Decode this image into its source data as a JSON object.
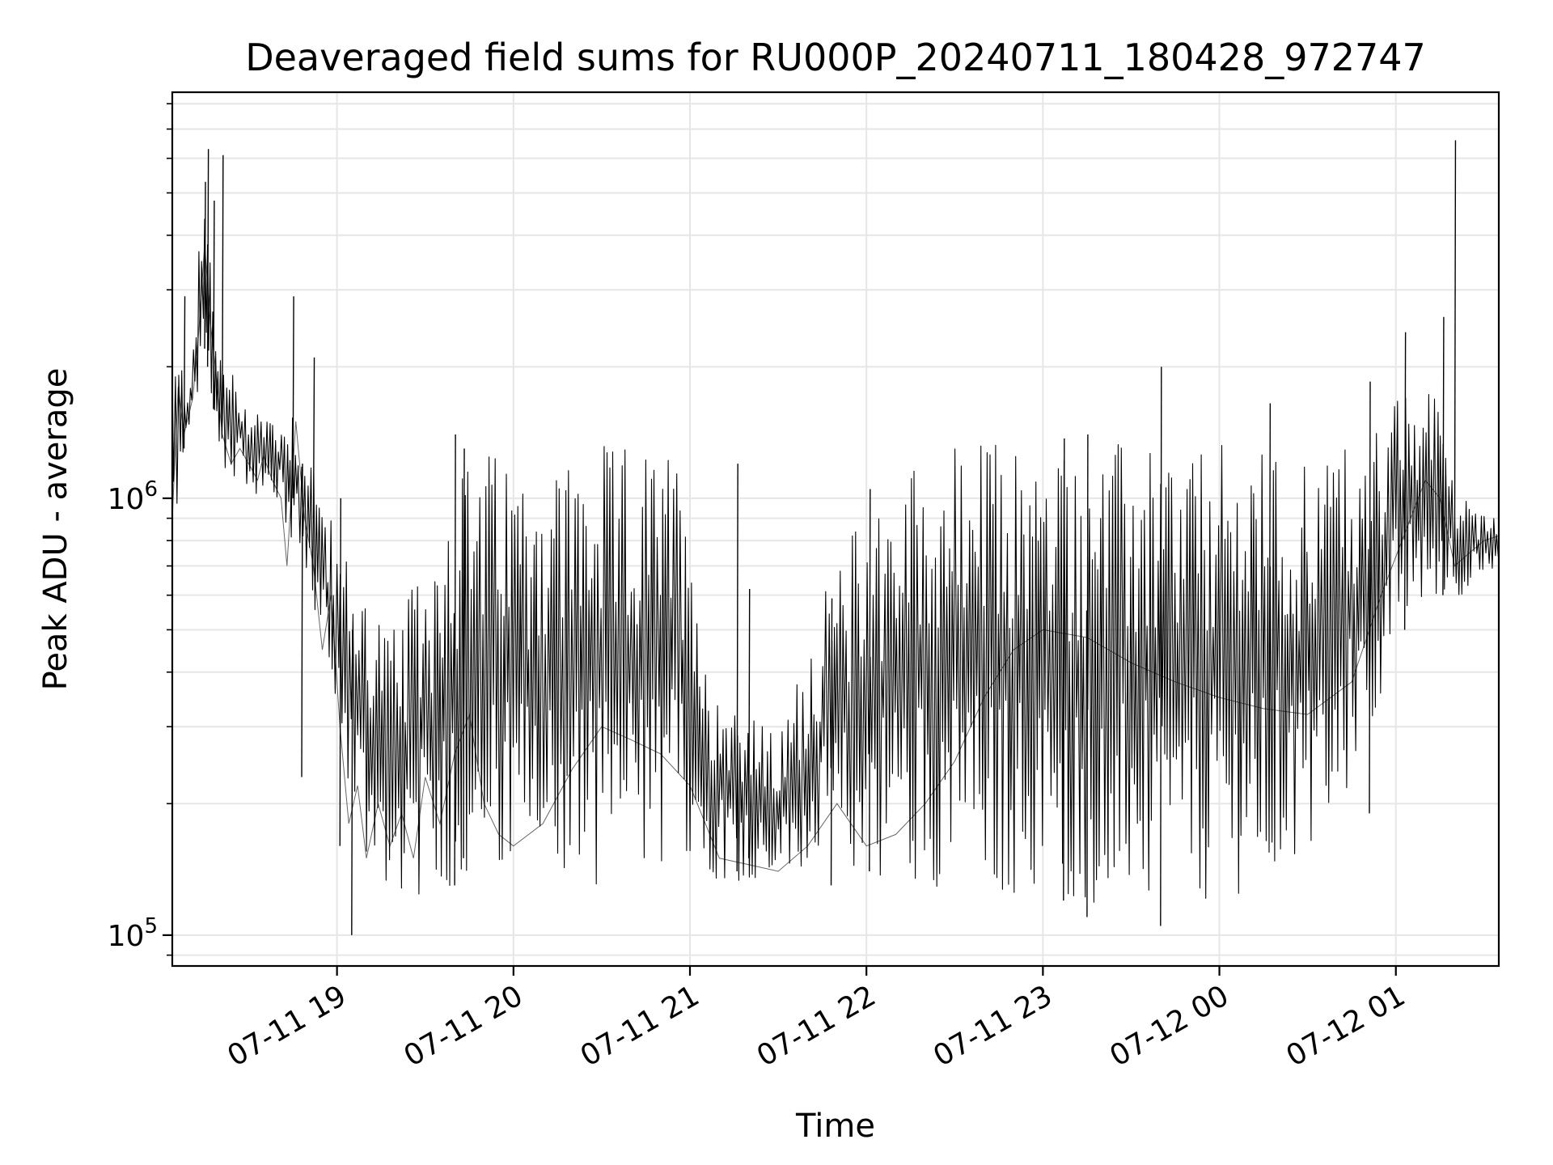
{
  "chart_data": {
    "type": "line",
    "title": "Deaveraged field sums for RU000P_20240711_180428_972747",
    "xlabel": "Time",
    "ylabel": "Peak ADU - average",
    "x_scale": "time",
    "y_scale": "log",
    "xlim": [
      "2024-07-11 18:04",
      "2024-07-12 01:35"
    ],
    "ylim": [
      85000,
      8500000
    ],
    "grid": true,
    "legend": "none",
    "line_color": "#000000",
    "x_ticks": [
      {
        "t": "2024-07-11 19:00",
        "label": "07-11 19"
      },
      {
        "t": "2024-07-11 20:00",
        "label": "07-11 20"
      },
      {
        "t": "2024-07-11 21:00",
        "label": "07-11 21"
      },
      {
        "t": "2024-07-11 22:00",
        "label": "07-11 22"
      },
      {
        "t": "2024-07-11 23:00",
        "label": "07-11 23"
      },
      {
        "t": "2024-07-12 00:00",
        "label": "07-12 00"
      },
      {
        "t": "2024-07-12 01:00",
        "label": "07-12 01"
      }
    ],
    "y_ticks": [
      {
        "value": 100000,
        "base": "10",
        "exp": "5"
      },
      {
        "value": 1000000,
        "base": "10",
        "exp": "6"
      }
    ],
    "series": [
      {
        "points": [
          [
            "2024-07-11 18:04",
            900000
          ],
          [
            "2024-07-11 18:06",
            1800000
          ],
          [
            "2024-07-11 18:08",
            1400000
          ],
          [
            "2024-07-11 18:11",
            1700000
          ],
          [
            "2024-07-11 18:13",
            2400000
          ],
          [
            "2024-07-11 18:15",
            3800000
          ],
          [
            "2024-07-11 18:17",
            2500000
          ],
          [
            "2024-07-11 18:19",
            1900000
          ],
          [
            "2024-07-11 18:21",
            1400000
          ],
          [
            "2024-07-11 18:24",
            1200000
          ],
          [
            "2024-07-11 18:27",
            1300000
          ],
          [
            "2024-07-11 18:30",
            1200000
          ],
          [
            "2024-07-11 18:33",
            1100000
          ],
          [
            "2024-07-11 18:35",
            1250000
          ],
          [
            "2024-07-11 18:38",
            1100000
          ],
          [
            "2024-07-11 18:41",
            1000000
          ],
          [
            "2024-07-11 18:43",
            700000
          ],
          [
            "2024-07-11 18:46",
            1500000
          ],
          [
            "2024-07-11 18:49",
            900000
          ],
          [
            "2024-07-11 18:52",
            700000
          ],
          [
            "2024-07-11 18:55",
            450000
          ],
          [
            "2024-07-11 18:58",
            600000
          ],
          [
            "2024-07-11 19:01",
            300000
          ],
          [
            "2024-07-11 19:04",
            180000
          ],
          [
            "2024-07-11 19:07",
            220000
          ],
          [
            "2024-07-11 19:10",
            150000
          ],
          [
            "2024-07-11 19:14",
            200000
          ],
          [
            "2024-07-11 19:18",
            160000
          ],
          [
            "2024-07-11 19:22",
            190000
          ],
          [
            "2024-07-11 19:26",
            150000
          ],
          [
            "2024-07-11 19:30",
            230000
          ],
          [
            "2024-07-11 19:35",
            180000
          ],
          [
            "2024-07-11 19:40",
            260000
          ],
          [
            "2024-07-11 19:45",
            320000
          ],
          [
            "2024-07-11 19:50",
            200000
          ],
          [
            "2024-07-11 19:55",
            170000
          ],
          [
            "2024-07-11 20:00",
            160000
          ],
          [
            "2024-07-11 20:10",
            180000
          ],
          [
            "2024-07-11 20:20",
            240000
          ],
          [
            "2024-07-11 20:30",
            300000
          ],
          [
            "2024-07-11 20:40",
            280000
          ],
          [
            "2024-07-11 20:50",
            260000
          ],
          [
            "2024-07-11 21:00",
            220000
          ],
          [
            "2024-07-11 21:10",
            150000
          ],
          [
            "2024-07-11 21:20",
            145000
          ],
          [
            "2024-07-11 21:30",
            140000
          ],
          [
            "2024-07-11 21:40",
            160000
          ],
          [
            "2024-07-11 21:50",
            200000
          ],
          [
            "2024-07-11 22:00",
            160000
          ],
          [
            "2024-07-11 22:10",
            170000
          ],
          [
            "2024-07-11 22:20",
            200000
          ],
          [
            "2024-07-11 22:30",
            250000
          ],
          [
            "2024-07-11 22:40",
            350000
          ],
          [
            "2024-07-11 22:50",
            450000
          ],
          [
            "2024-07-11 23:00",
            500000
          ],
          [
            "2024-07-11 23:15",
            480000
          ],
          [
            "2024-07-11 23:30",
            420000
          ],
          [
            "2024-07-11 23:45",
            380000
          ],
          [
            "2024-07-12 00:00",
            350000
          ],
          [
            "2024-07-12 00:15",
            330000
          ],
          [
            "2024-07-12 00:30",
            320000
          ],
          [
            "2024-07-12 00:45",
            380000
          ],
          [
            "2024-07-12 00:55",
            600000
          ],
          [
            "2024-07-12 01:05",
            900000
          ],
          [
            "2024-07-12 01:10",
            1100000
          ],
          [
            "2024-07-12 01:15",
            1000000
          ],
          [
            "2024-07-12 01:20",
            700000
          ],
          [
            "2024-07-12 01:25",
            750000
          ],
          [
            "2024-07-12 01:30",
            800000
          ],
          [
            "2024-07-12 01:35",
            820000
          ]
        ],
        "envelope": [
          [
            "2024-07-11 18:04",
            800000,
            2200000
          ],
          [
            "2024-07-11 18:10",
            1300000,
            2000000
          ],
          [
            "2024-07-11 18:15",
            1800000,
            5500000
          ],
          [
            "2024-07-11 18:20",
            1200000,
            2200000
          ],
          [
            "2024-07-11 18:30",
            1050000,
            1700000
          ],
          [
            "2024-07-11 18:40",
            950000,
            1550000
          ],
          [
            "2024-07-11 18:47",
            700000,
            1700000
          ],
          [
            "2024-07-11 18:52",
            550000,
            1250000
          ],
          [
            "2024-07-11 19:00",
            300000,
            800000
          ],
          [
            "2024-07-11 19:10",
            140000,
            650000
          ],
          [
            "2024-07-11 19:20",
            125000,
            500000
          ],
          [
            "2024-07-11 19:30",
            120000,
            750000
          ],
          [
            "2024-07-11 19:40",
            130000,
            1200000
          ],
          [
            "2024-07-11 19:50",
            135000,
            1300000
          ],
          [
            "2024-07-11 20:00",
            125000,
            1250000
          ],
          [
            "2024-07-11 20:30",
            130000,
            1330000
          ],
          [
            "2024-07-11 21:00",
            140000,
            1280000
          ],
          [
            "2024-07-11 21:05",
            135000,
            420000
          ],
          [
            "2024-07-11 21:30",
            130000,
            280000
          ],
          [
            "2024-07-11 21:45",
            140000,
            600000
          ],
          [
            "2024-07-11 22:00",
            135000,
            1000000
          ],
          [
            "2024-07-11 22:20",
            130000,
            1300000
          ],
          [
            "2024-07-11 22:40",
            125000,
            1380000
          ],
          [
            "2024-07-11 23:00",
            120000,
            1350000
          ],
          [
            "2024-07-11 23:30",
            115000,
            1350000
          ],
          [
            "2024-07-12 00:00",
            120000,
            1330000
          ],
          [
            "2024-07-12 00:30",
            140000,
            1300000
          ],
          [
            "2024-07-12 00:50",
            250000,
            1400000
          ],
          [
            "2024-07-12 01:00",
            500000,
            1700000
          ],
          [
            "2024-07-12 01:15",
            600000,
            1800000
          ],
          [
            "2024-07-12 01:22",
            600000,
            1000000
          ],
          [
            "2024-07-12 01:35",
            620000,
            1000000
          ]
        ],
        "spikes": [
          [
            "2024-07-11 18:08",
            1300000,
            2900000
          ],
          [
            "2024-07-11 18:15",
            2200000,
            5300000
          ],
          [
            "2024-07-11 18:16",
            2000000,
            6300000
          ],
          [
            "2024-07-11 18:18",
            1600000,
            4800000
          ],
          [
            "2024-07-11 18:21",
            1500000,
            6100000
          ],
          [
            "2024-07-11 18:45",
            1000000,
            2900000
          ],
          [
            "2024-07-11 18:48",
            230000,
            1200000
          ],
          [
            "2024-07-11 18:52",
            900000,
            2100000
          ],
          [
            "2024-07-11 19:01",
            160000,
            1000000
          ],
          [
            "2024-07-11 19:05",
            100000,
            500000
          ],
          [
            "2024-07-11 19:40",
            130000,
            1400000
          ],
          [
            "2024-07-11 19:43",
            150000,
            1300000
          ],
          [
            "2024-07-11 21:16",
            140000,
            1200000
          ],
          [
            "2024-07-11 21:20",
            150000,
            620000
          ],
          [
            "2024-07-11 21:48",
            130000,
            590000
          ],
          [
            "2024-07-11 22:01",
            140000,
            1050000
          ],
          [
            "2024-07-11 23:07",
            120000,
            1370000
          ],
          [
            "2024-07-11 23:15",
            110000,
            1400000
          ],
          [
            "2024-07-11 23:40",
            105000,
            2000000
          ],
          [
            "2024-07-12 00:17",
            280000,
            1650000
          ],
          [
            "2024-07-12 00:51",
            190000,
            1850000
          ],
          [
            "2024-07-12 01:03",
            500000,
            2400000
          ],
          [
            "2024-07-12 01:16",
            600000,
            2600000
          ],
          [
            "2024-07-12 01:20",
            800000,
            6600000
          ]
        ]
      }
    ]
  }
}
